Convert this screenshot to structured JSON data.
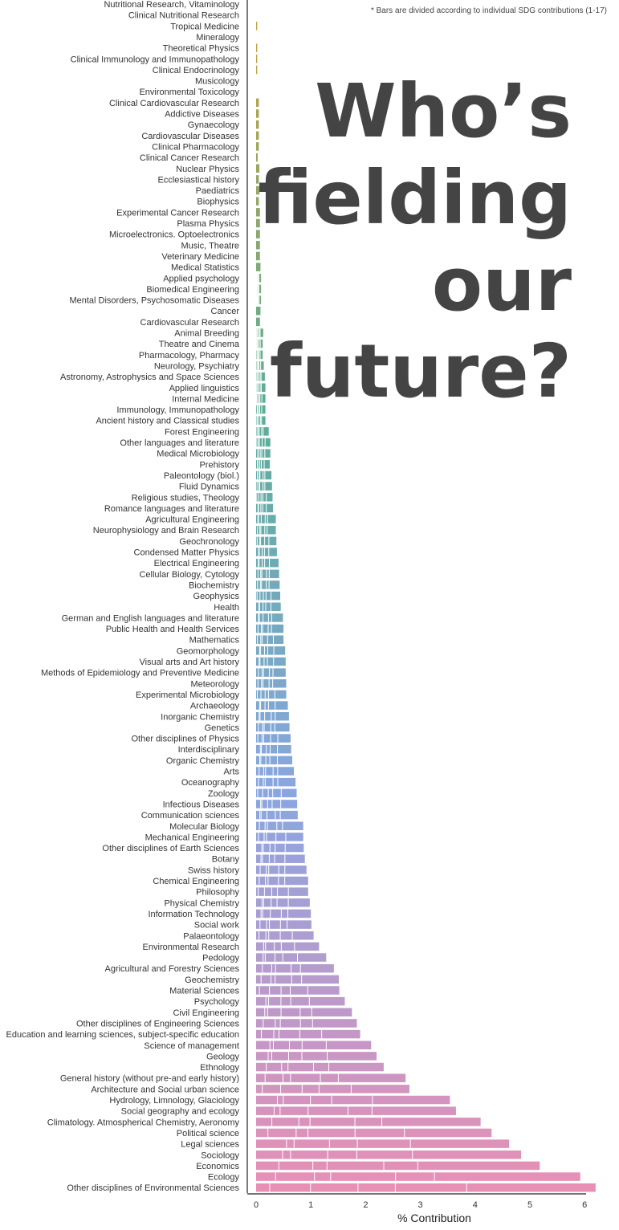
{
  "chart_data": {
    "type": "bar",
    "orientation": "horizontal",
    "stacked": true,
    "headline": [
      "Who’s",
      "fielding",
      "our",
      "future?"
    ],
    "note": "* Bars are divided according to individual SDG contributions (1-17)",
    "xlabel": "% Contribution",
    "ylabel": "",
    "xlim": [
      0,
      6.2
    ],
    "xticks": [
      0,
      1,
      2,
      3,
      4,
      5,
      6
    ],
    "grid": false,
    "legend": "none",
    "colors": {
      "top": "#c9a23a",
      "middle": "#5aae95",
      "lower": "#8aa6e0",
      "bottom": "#e88fb5",
      "axis": "#222222",
      "separator": "#ffffff"
    },
    "categories": [
      "Nutritional Research, Vitaminology",
      "Clinical Nutritional Research",
      "Tropical Medicine",
      "Mineralogy",
      "Theoretical Physics",
      "Clinical Immunology and Immunopathology",
      "Clinical Endocrinology",
      "Musicology",
      "Environmental Toxicology",
      "Clinical Cardiovascular Research",
      "Addictive Diseases",
      "Gynaecology",
      "Cardiovascular Diseases",
      "Clinical Pharmacology",
      "Clinical Cancer Research",
      "Nuclear Physics",
      "Ecclesiastical history",
      "Paediatrics",
      "Biophysics",
      "Experimental Cancer Research",
      "Plasma Physics",
      "Microelectronics. Optoelectronics",
      "Music, Theatre",
      "Veterinary Medicine",
      "Medical Statistics",
      "Applied psychology",
      "Biomedical Engineering",
      "Mental Disorders, Psychosomatic Diseases",
      "Cancer",
      "Cardiovascular Research",
      "Animal Breeding",
      "Theatre and Cinema",
      "Pharmacology, Pharmacy",
      "Neurology, Psychiatry",
      "Astronomy, Astrophysics and Space Sciences",
      "Applied linguistics",
      "Internal Medicine",
      "Immunology, Immunopathology",
      "Ancient history and Classical studies",
      "Forest Engineering",
      "Other languages and literature",
      "Medical Microbiology",
      "Prehistory",
      "Paleontology (biol.)",
      "Fluid Dynamics",
      "Religious studies, Theology",
      "Romance languages and literature",
      "Agricultural Engineering",
      "Neurophysiology and Brain Research",
      "Geochronology",
      "Condensed Matter Physics",
      "Electrical Engineering",
      "Cellular Biology, Cytology",
      "Biochemistry",
      "Geophysics",
      "Health",
      "German and English languages and literature",
      "Public Health and Health Services",
      "Mathematics",
      "Geomorphology",
      "Visual arts and Art history",
      "Methods of Epidemiology and Preventive Medicine",
      "Meteorology",
      "Experimental Microbiology",
      "Archaeology",
      "Inorganic Chemistry",
      "Genetics",
      "Other disciplines of Physics",
      "Interdisciplinary",
      "Organic Chemistry",
      "Arts",
      "Oceanography",
      "Zoology",
      "Infectious Diseases",
      "Communication sciences",
      "Molecular Biology",
      "Mechanical Engineering",
      "Other disciplines of Earth Sciences",
      "Botany",
      "Swiss history",
      "Chemical Engineering",
      "Philosophy",
      "Physical Chemistry",
      "Information Technology",
      "Social work",
      "Palaeontology",
      "Environmental Research",
      "Pedology",
      "Agricultural and Forestry Sciences",
      "Geochemistry",
      "Material Sciences",
      "Psychology",
      "Civil Engineering",
      "Other disciplines of Engineering Sciences",
      "Education and learning sciences, subject-specific education",
      "Science of management",
      "Geology",
      "Ethnology",
      "General history (without pre-and early history)",
      "Architecture and Social urban science",
      "Hydrology, Limnology, Glaciology",
      "Social geography and ecology",
      "Climatology. Atmospherical Chemistry, Aeronomy",
      "Political science",
      "Legal sciences",
      "Sociology",
      "Economics",
      "Ecology",
      "Other disciplines of Environmental Sciences"
    ],
    "values": [
      0,
      0,
      0.02,
      0,
      0.02,
      0.02,
      0.02,
      0,
      0,
      0.05,
      0.05,
      0.05,
      0.05,
      0.05,
      0.03,
      0.06,
      0.05,
      0.06,
      0.05,
      0.07,
      0.07,
      0.07,
      0.07,
      0.07,
      0.08,
      0.09,
      0.09,
      0.09,
      0.08,
      0.07,
      0.13,
      0.12,
      0.12,
      0.14,
      0.16,
      0.17,
      0.17,
      0.17,
      0.17,
      0.23,
      0.26,
      0.26,
      0.25,
      0.28,
      0.29,
      0.3,
      0.31,
      0.36,
      0.36,
      0.37,
      0.38,
      0.41,
      0.42,
      0.43,
      0.44,
      0.45,
      0.49,
      0.5,
      0.5,
      0.53,
      0.54,
      0.54,
      0.55,
      0.55,
      0.58,
      0.6,
      0.61,
      0.63,
      0.64,
      0.66,
      0.69,
      0.72,
      0.74,
      0.75,
      0.76,
      0.86,
      0.86,
      0.87,
      0.89,
      0.92,
      0.95,
      0.95,
      0.98,
      1.0,
      1.01,
      1.05,
      1.15,
      1.28,
      1.42,
      1.51,
      1.52,
      1.62,
      1.75,
      1.84,
      1.9,
      2.1,
      2.2,
      2.33,
      2.73,
      2.8,
      3.54,
      3.65,
      4.1,
      4.3,
      4.62,
      4.84,
      5.18,
      5.92,
      6.2
    ]
  }
}
